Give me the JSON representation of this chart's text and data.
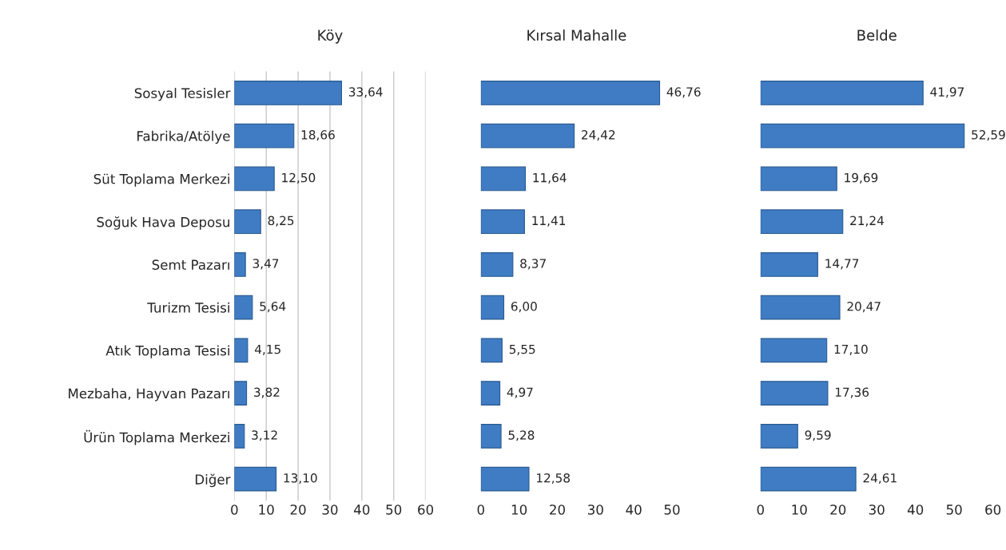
{
  "chart_data": [
    {
      "type": "bar",
      "orientation": "horizontal",
      "title": "Köy",
      "categories": [
        "Sosyal Tesisler",
        "Fabrika/Atölye",
        "Süt Toplama Merkezi",
        "Soğuk Hava Deposu",
        "Semt Pazarı",
        "Turizm Tesisi",
        "Atık Toplama Tesisi",
        "Mezbaha, Hayvan Pazarı",
        "Ürün Toplama Merkezi",
        "Diğer"
      ],
      "values": [
        33.64,
        18.66,
        12.5,
        8.25,
        3.47,
        5.64,
        4.15,
        3.82,
        3.12,
        13.1
      ],
      "value_labels": [
        "33,64",
        "18,66",
        "12,50",
        "8,25",
        "3,47",
        "5,64",
        "4,15",
        "3,82",
        "3,12",
        "13,10"
      ],
      "color": "#3f7cc4",
      "xlim": [
        0,
        60
      ],
      "xticks": [
        0,
        10,
        20,
        30,
        40,
        50,
        60
      ],
      "grid": "x"
    },
    {
      "type": "bar",
      "orientation": "horizontal",
      "title": "Kırsal Mahalle",
      "categories": [
        null,
        null,
        null,
        null,
        null,
        null,
        null,
        null,
        null,
        null
      ],
      "values": [
        46.76,
        24.42,
        11.64,
        11.41,
        8.37,
        6.0,
        5.55,
        4.97,
        5.28,
        12.58
      ],
      "value_labels": [
        "46,76",
        "24,42",
        "11,64",
        "11,41",
        "8,37",
        "6,00",
        "5,55",
        "4,97",
        "5,28",
        "12,58"
      ],
      "color": "#3f7cc4",
      "xlim": [
        0,
        50
      ],
      "xticks": [
        0,
        10,
        20,
        30,
        40,
        50
      ]
    },
    {
      "type": "bar",
      "orientation": "horizontal",
      "title": "Belde",
      "categories": [
        null,
        null,
        null,
        null,
        null,
        null,
        null,
        null,
        null,
        null
      ],
      "values": [
        41.97,
        52.59,
        19.69,
        21.24,
        14.77,
        20.47,
        17.1,
        17.36,
        9.59,
        24.61
      ],
      "value_labels": [
        "41,97",
        "52,59",
        "19,69",
        "21,24",
        "14,77",
        "20,47",
        "17,10",
        "17,36",
        "9,59",
        "24,61"
      ],
      "color": "#3f7cc4",
      "xlim": [
        0,
        60
      ],
      "xticks": [
        0,
        10,
        20,
        30,
        40,
        50,
        60
      ]
    }
  ]
}
